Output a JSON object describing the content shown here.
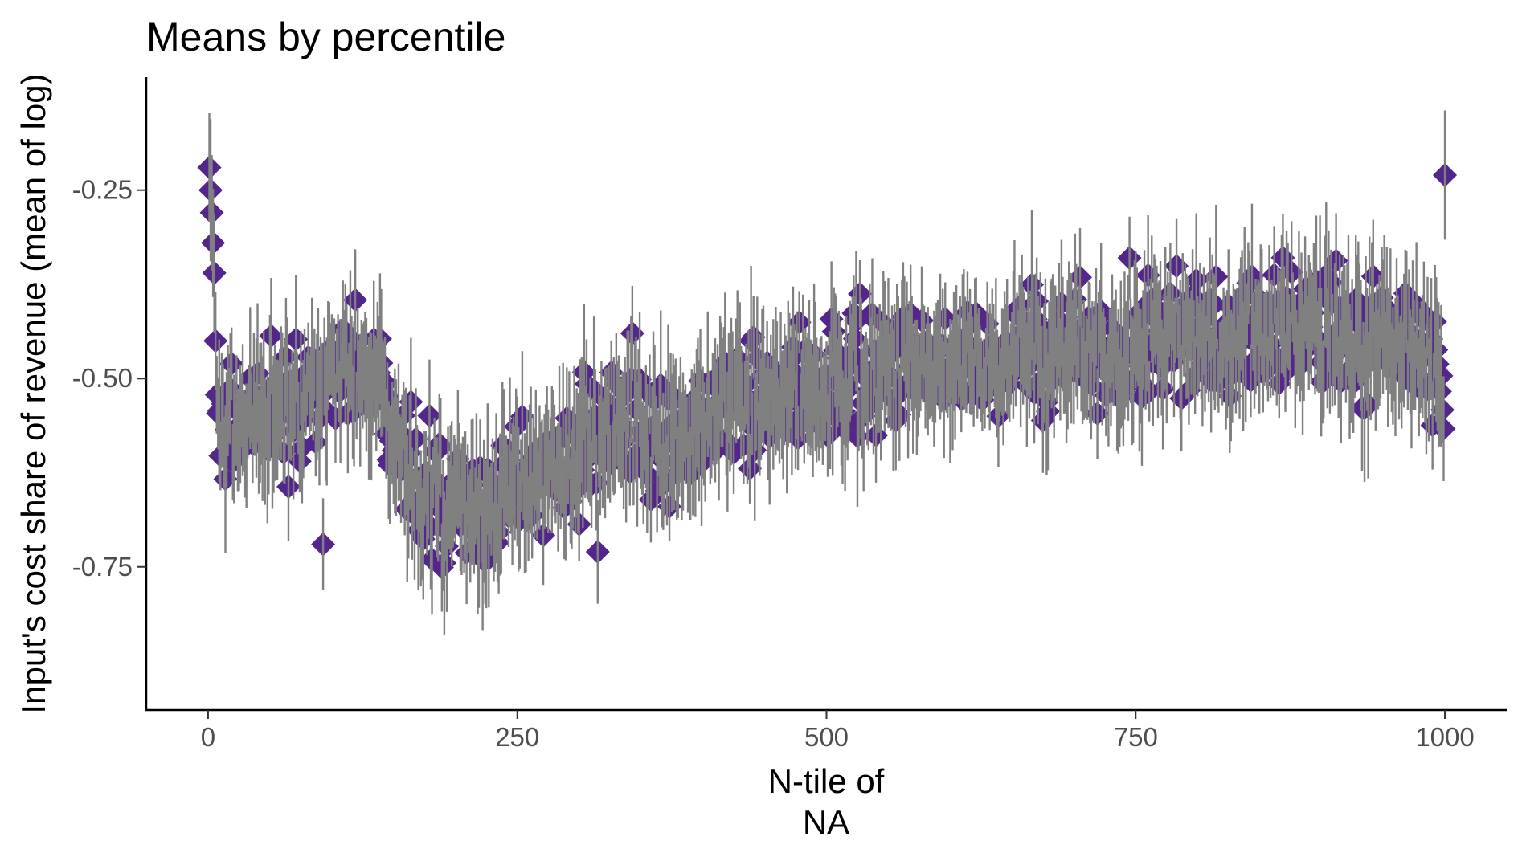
{
  "chart_data": {
    "type": "scatter",
    "title": "Means by percentile",
    "xlabel_lines": [
      "N-tile of",
      "NA"
    ],
    "ylabel": "Input's cost share of revenue (mean of log)",
    "xlim": [
      -50,
      1050
    ],
    "ylim": [
      -0.94,
      -0.1
    ],
    "xticks": [
      0,
      250,
      500,
      750,
      1000
    ],
    "xtick_labels": [
      "0",
      "250",
      "500",
      "750",
      "1000"
    ],
    "yticks": [
      -0.25,
      -0.5,
      -0.75
    ],
    "ytick_labels": [
      "-0.25",
      "-0.50",
      "-0.75"
    ],
    "grid": false,
    "legend": "none",
    "n_points": 1000,
    "series": [
      {
        "marker": "diamond",
        "point_color": "#53268b",
        "errorbar_color": "#808080",
        "trend_knots": {
          "x": [
            1,
            2,
            3,
            4,
            5,
            6,
            8,
            12,
            20,
            40,
            60,
            80,
            100,
            120,
            140,
            150,
            170,
            190,
            200,
            220,
            240,
            260,
            300,
            340,
            380,
            420,
            460,
            500,
            550,
            600,
            650,
            700,
            750,
            800,
            850,
            900,
            950,
            999,
            1000
          ],
          "y": [
            -0.22,
            -0.25,
            -0.28,
            -0.32,
            -0.36,
            -0.45,
            -0.55,
            -0.58,
            -0.57,
            -0.55,
            -0.54,
            -0.52,
            -0.5,
            -0.49,
            -0.5,
            -0.58,
            -0.64,
            -0.67,
            -0.68,
            -0.67,
            -0.65,
            -0.63,
            -0.6,
            -0.58,
            -0.56,
            -0.54,
            -0.52,
            -0.5,
            -0.49,
            -0.48,
            -0.47,
            -0.46,
            -0.45,
            -0.44,
            -0.44,
            -0.44,
            -0.45,
            -0.47,
            -0.23
          ]
        },
        "mean_spread": 0.05,
        "ci_halfwidth_range": [
          0.04,
          0.1
        ],
        "notable_points": [
          {
            "x": 1,
            "y": -0.22
          },
          {
            "x": 93,
            "y": -0.72
          },
          {
            "x": 181,
            "y": -0.74
          },
          {
            "x": 315,
            "y": -0.73
          },
          {
            "x": 343,
            "y": -0.44
          },
          {
            "x": 373,
            "y": -0.67
          },
          {
            "x": 745,
            "y": -0.34
          },
          {
            "x": 1000,
            "y": -0.23
          }
        ]
      }
    ]
  }
}
